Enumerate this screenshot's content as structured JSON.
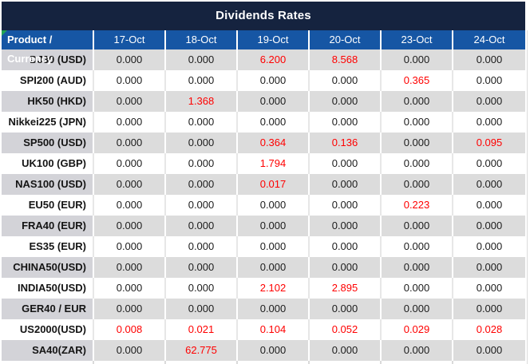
{
  "title": "Dividends Rates",
  "columns": [
    "Product / Currency",
    "17-Oct",
    "18-Oct",
    "19-Oct",
    "20-Oct",
    "23-Oct",
    "24-Oct"
  ],
  "rows": [
    {
      "label": "DJ30 (USD)",
      "values": [
        "0.000",
        "0.000",
        "6.200",
        "8.568",
        "0.000",
        "0.000"
      ],
      "red": [
        false,
        false,
        true,
        true,
        false,
        false
      ]
    },
    {
      "label": "SPI200 (AUD)",
      "values": [
        "0.000",
        "0.000",
        "0.000",
        "0.000",
        "0.365",
        "0.000"
      ],
      "red": [
        false,
        false,
        false,
        false,
        true,
        false
      ]
    },
    {
      "label": "HK50 (HKD)",
      "values": [
        "0.000",
        "1.368",
        "0.000",
        "0.000",
        "0.000",
        "0.000"
      ],
      "red": [
        false,
        true,
        false,
        false,
        false,
        false
      ]
    },
    {
      "label": "Nikkei225 (JPN)",
      "values": [
        "0.000",
        "0.000",
        "0.000",
        "0.000",
        "0.000",
        "0.000"
      ],
      "red": [
        false,
        false,
        false,
        false,
        false,
        false
      ]
    },
    {
      "label": "SP500 (USD)",
      "values": [
        "0.000",
        "0.000",
        "0.364",
        "0.136",
        "0.000",
        "0.095"
      ],
      "red": [
        false,
        false,
        true,
        true,
        false,
        true
      ]
    },
    {
      "label": "UK100 (GBP)",
      "values": [
        "0.000",
        "0.000",
        "1.794",
        "0.000",
        "0.000",
        "0.000"
      ],
      "red": [
        false,
        false,
        true,
        false,
        false,
        false
      ]
    },
    {
      "label": "NAS100 (USD)",
      "values": [
        "0.000",
        "0.000",
        "0.017",
        "0.000",
        "0.000",
        "0.000"
      ],
      "red": [
        false,
        false,
        true,
        false,
        false,
        false
      ]
    },
    {
      "label": "EU50 (EUR)",
      "values": [
        "0.000",
        "0.000",
        "0.000",
        "0.000",
        "0.223",
        "0.000"
      ],
      "red": [
        false,
        false,
        false,
        false,
        true,
        false
      ]
    },
    {
      "label": "FRA40 (EUR)",
      "values": [
        "0.000",
        "0.000",
        "0.000",
        "0.000",
        "0.000",
        "0.000"
      ],
      "red": [
        false,
        false,
        false,
        false,
        false,
        false
      ]
    },
    {
      "label": "ES35 (EUR)",
      "values": [
        "0.000",
        "0.000",
        "0.000",
        "0.000",
        "0.000",
        "0.000"
      ],
      "red": [
        false,
        false,
        false,
        false,
        false,
        false
      ]
    },
    {
      "label": "CHINA50(USD)",
      "values": [
        "0.000",
        "0.000",
        "0.000",
        "0.000",
        "0.000",
        "0.000"
      ],
      "red": [
        false,
        false,
        false,
        false,
        false,
        false
      ]
    },
    {
      "label": "INDIA50(USD)",
      "values": [
        "0.000",
        "0.000",
        "2.102",
        "2.895",
        "0.000",
        "0.000"
      ],
      "red": [
        false,
        false,
        true,
        true,
        false,
        false
      ]
    },
    {
      "label": "GER40 / EUR",
      "values": [
        "0.000",
        "0.000",
        "0.000",
        "0.000",
        "0.000",
        "0.000"
      ],
      "red": [
        false,
        false,
        false,
        false,
        false,
        false
      ]
    },
    {
      "label": "US2000(USD)",
      "values": [
        "0.008",
        "0.021",
        "0.104",
        "0.052",
        "0.029",
        "0.028"
      ],
      "red": [
        true,
        true,
        true,
        true,
        true,
        true
      ]
    },
    {
      "label": "SA40(ZAR)",
      "values": [
        "0.000",
        "62.775",
        "0.000",
        "0.000",
        "0.000",
        "0.000"
      ],
      "red": [
        false,
        true,
        false,
        false,
        false,
        false
      ]
    }
  ],
  "icons": {
    "corner_marker": "error-marker-icon"
  },
  "colors": {
    "title_bg": "#15233f",
    "header_bg": "#1656a4",
    "label_gray": "#d3d3d8",
    "value_gray": "#dcdcdc",
    "value_red": "#ff0000",
    "marker_green": "#21a453"
  }
}
